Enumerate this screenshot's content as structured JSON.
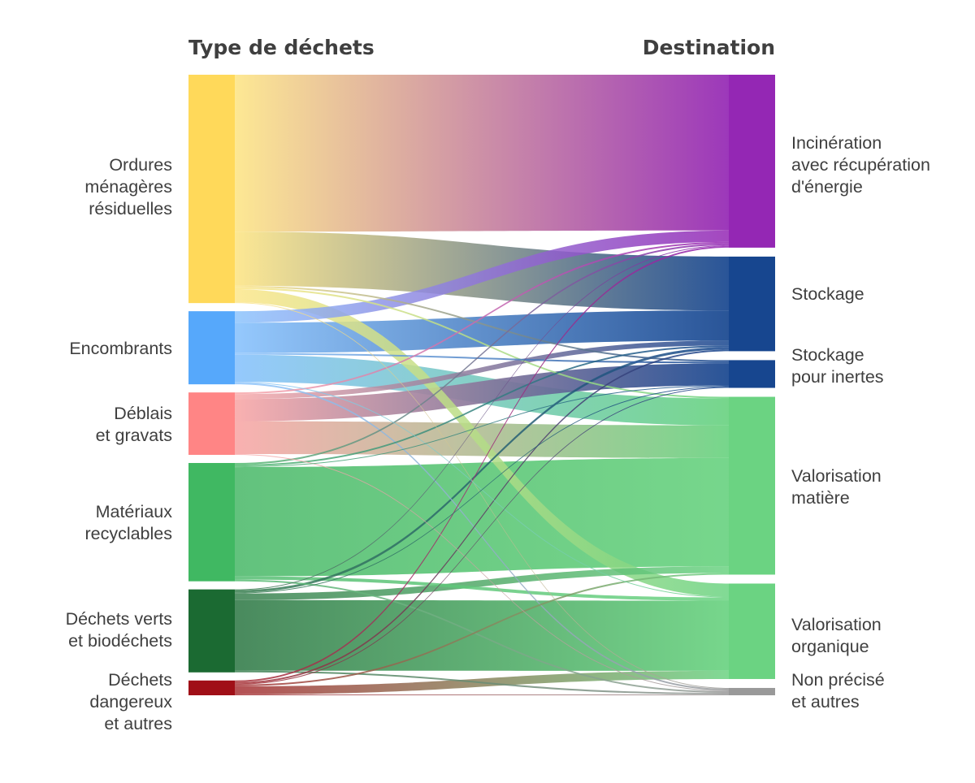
{
  "headers": {
    "left": "Type de déchets",
    "right": "Destination"
  },
  "source_nodes": [
    {
      "id": "omr",
      "label": "Ordures\nménagères\nrésiduelles",
      "color": "#ffd95a",
      "light": "#fde68a"
    },
    {
      "id": "enc",
      "label": "Encombrants",
      "color": "#56a8fb",
      "light": "#8cc4fd"
    },
    {
      "id": "deb",
      "label": "Déblais\net gravats",
      "color": "#ff8585",
      "light": "#f9aaaa"
    },
    {
      "id": "mat",
      "label": "Matériaux\nrecyclables",
      "color": "#40b862",
      "light": "#55bd72"
    },
    {
      "id": "ver",
      "label": "Déchets verts\net biodéchets",
      "color": "#1b6a32",
      "light": "#3a8050"
    },
    {
      "id": "dan",
      "label": "Déchets\ndangereux\net autres",
      "color": "#a00f17",
      "light": "#a83236"
    }
  ],
  "target_nodes": [
    {
      "id": "inc",
      "label": "Incinération\navec récupération\nd'énergie",
      "color": "#9427b4"
    },
    {
      "id": "sto",
      "label": "Stockage",
      "color": "#17468f"
    },
    {
      "id": "ine",
      "label": "Stockage\npour inertes",
      "color": "#17468f"
    },
    {
      "id": "val",
      "label": "Valorisation\nmatière",
      "color": "#6bd382"
    },
    {
      "id": "org",
      "label": "Valorisation\norganique",
      "color": "#6bd382"
    },
    {
      "id": "nps",
      "label": "Non précisé\net autres",
      "color": "#999999"
    }
  ],
  "links": [
    {
      "source": "omr",
      "target": "inc",
      "value": 191
    },
    {
      "source": "omr",
      "target": "sto",
      "value": 66
    },
    {
      "source": "omr",
      "target": "ine",
      "value": 2
    },
    {
      "source": "omr",
      "target": "val",
      "value": 2
    },
    {
      "source": "omr",
      "target": "org",
      "value": 16
    },
    {
      "source": "omr",
      "target": "nps",
      "value": 1
    },
    {
      "source": "enc",
      "target": "inc",
      "value": 14
    },
    {
      "source": "enc",
      "target": "sto",
      "value": 37
    },
    {
      "source": "enc",
      "target": "ine",
      "value": 2
    },
    {
      "source": "enc",
      "target": "val",
      "value": 33
    },
    {
      "source": "enc",
      "target": "org",
      "value": 1
    },
    {
      "source": "enc",
      "target": "nps",
      "value": 2
    },
    {
      "source": "deb",
      "target": "inc",
      "value": 2
    },
    {
      "source": "deb",
      "target": "sto",
      "value": 6
    },
    {
      "source": "deb",
      "target": "ine",
      "value": 27
    },
    {
      "source": "deb",
      "target": "val",
      "value": 40
    },
    {
      "source": "deb",
      "target": "nps",
      "value": 1
    },
    {
      "source": "mat",
      "target": "inc",
      "value": 2
    },
    {
      "source": "mat",
      "target": "sto",
      "value": 2
    },
    {
      "source": "mat",
      "target": "ine",
      "value": 1
    },
    {
      "source": "mat",
      "target": "val",
      "value": 133
    },
    {
      "source": "mat",
      "target": "org",
      "value": 4
    },
    {
      "source": "mat",
      "target": "nps",
      "value": 2
    },
    {
      "source": "ver",
      "target": "inc",
      "value": 1
    },
    {
      "source": "ver",
      "target": "sto",
      "value": 3
    },
    {
      "source": "ver",
      "target": "ine",
      "value": 1
    },
    {
      "source": "ver",
      "target": "val",
      "value": 8
    },
    {
      "source": "ver",
      "target": "org",
      "value": 86
    },
    {
      "source": "ver",
      "target": "nps",
      "value": 2
    },
    {
      "source": "dan",
      "target": "inc",
      "value": 2
    },
    {
      "source": "dan",
      "target": "sto",
      "value": 2
    },
    {
      "source": "dan",
      "target": "ine",
      "value": 1
    },
    {
      "source": "dan",
      "target": "val",
      "value": 2
    },
    {
      "source": "dan",
      "target": "org",
      "value": 10
    },
    {
      "source": "dan",
      "target": "nps",
      "value": 1
    }
  ]
}
